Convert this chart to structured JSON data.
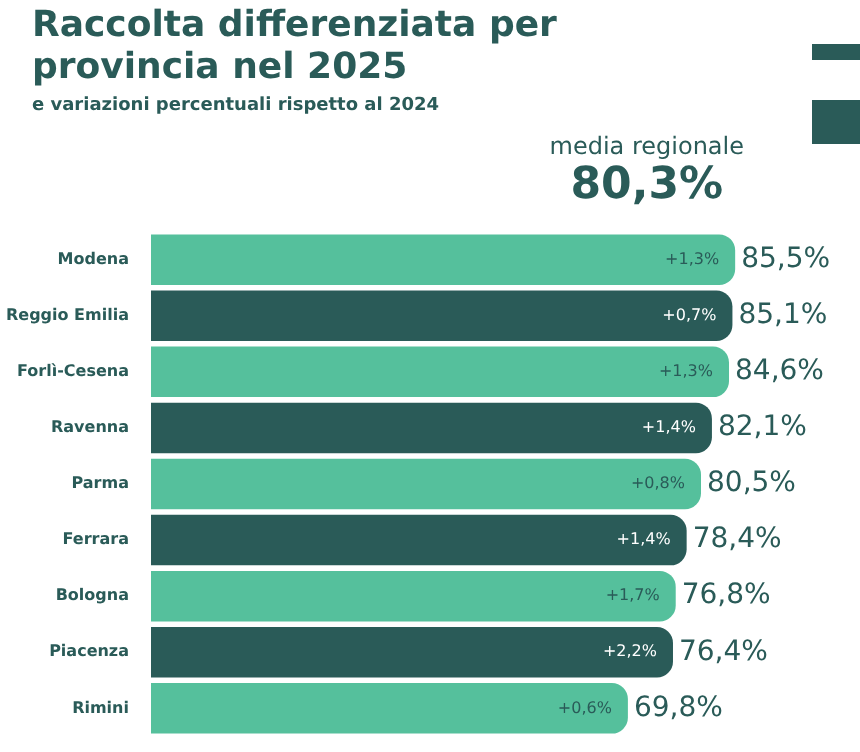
{
  "chart_data": {
    "type": "bar",
    "orientation": "horizontal",
    "title": "Raccolta differenziata per provincia nel 2025",
    "subtitle": "e variazioni percentuali rispetto al 2024",
    "categories": [
      "Modena",
      "Reggio Emilia",
      "Forlì-Cesena",
      "Ravenna",
      "Parma",
      "Ferrara",
      "Bologna",
      "Piacenza",
      "Rimini"
    ],
    "values": [
      85.5,
      85.1,
      84.6,
      82.1,
      80.5,
      78.4,
      76.8,
      76.4,
      69.8
    ],
    "colors": [
      "#55c09c",
      "#2a5b58",
      "#55c09c",
      "#2a5b58",
      "#55c09c",
      "#2a5b58",
      "#55c09c",
      "#2a5b58",
      "#55c09c"
    ],
    "value_labels": [
      "85,5%",
      "85,1%",
      "84,6%",
      "82,1%",
      "80,5%",
      "78,4%",
      "76,8%",
      "76,4%",
      "69,8%"
    ],
    "annotations": [
      {
        "text": "+1,3%",
        "x": 85.5,
        "y": "Modena"
      },
      {
        "text": "+0,7%",
        "x": 85.1,
        "y": "Reggio Emilia"
      },
      {
        "text": "+1,3%",
        "x": 84.6,
        "y": "Forlì-Cesena"
      },
      {
        "text": "+1,4%",
        "x": 82.1,
        "y": "Ravenna"
      },
      {
        "text": "+0,8%",
        "x": 80.5,
        "y": "Parma"
      },
      {
        "text": "+1,4%",
        "x": 78.4,
        "y": "Ferrara"
      },
      {
        "text": "+1,7%",
        "x": 76.8,
        "y": "Bologna"
      },
      {
        "text": "+2,2%",
        "x": 76.4,
        "y": "Piacenza"
      },
      {
        "text": "+0,6%",
        "x": 69.8,
        "y": "Rimini"
      },
      "media regionale",
      "80,3%"
    ],
    "tick_labels": "y",
    "grid": false,
    "legend": false
  }
}
